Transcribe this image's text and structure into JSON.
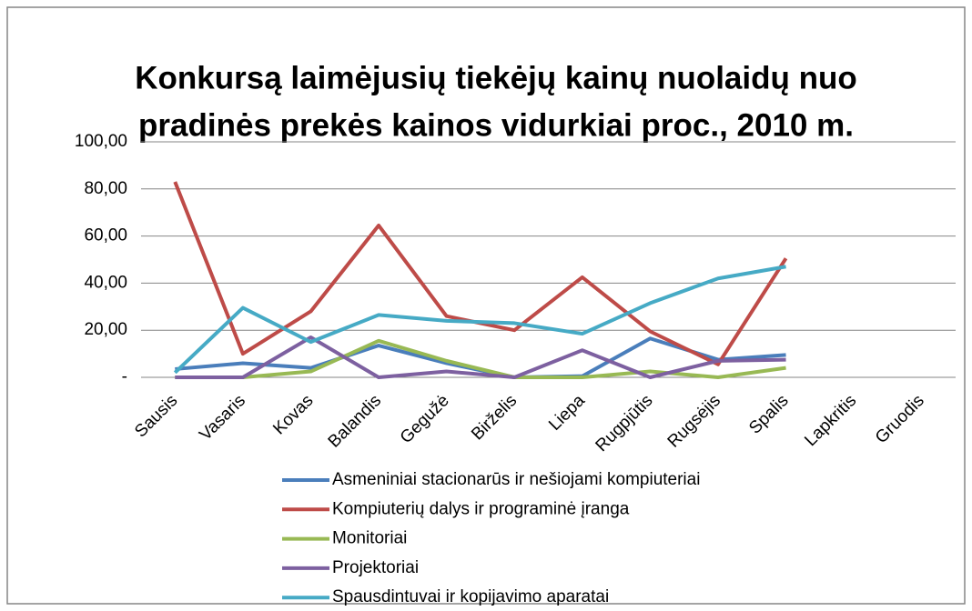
{
  "chart_data": {
    "type": "line",
    "title": [
      "Konkursą laimėjusių tiekėjų kainų nuolaidų nuo",
      "pradinės prekės kainos vidurkiai proc., 2010 m."
    ],
    "categories": [
      "Sausis",
      "Vasaris",
      "Kovas",
      "Balandis",
      "Gegužė",
      "Birželis",
      "Liepa",
      "Rugpjūtis",
      "Rugsėjis",
      "Spalis",
      "Lapkritis",
      "Gruodis"
    ],
    "series": [
      {
        "name": "Asmeniniai stacionarūs ir nešiojami kompiuteriai",
        "color": "#4a7ebb",
        "values": [
          3.5,
          6,
          4,
          13.5,
          6,
          0,
          0.5,
          16.5,
          7.5,
          9.5,
          null,
          null
        ]
      },
      {
        "name": "Kompiuterių dalys ir programinė įranga",
        "color": "#be4b48",
        "values": [
          83,
          10,
          28,
          64.5,
          26,
          20,
          42.5,
          19.5,
          5.5,
          50.5,
          null,
          null
        ]
      },
      {
        "name": "Monitoriai",
        "color": "#98b954",
        "values": [
          0,
          0,
          2.5,
          15.5,
          7,
          0,
          0,
          2.5,
          0,
          4,
          null,
          null
        ]
      },
      {
        "name": "Projektoriai",
        "color": "#7d60a0",
        "values": [
          0,
          0,
          17,
          0,
          2.5,
          0,
          11.5,
          0,
          7,
          7.5,
          null,
          null
        ]
      },
      {
        "name": "Spausdintuvai ir kopijavimo aparatai",
        "color": "#46aac5",
        "values": [
          2,
          29.5,
          15,
          26.5,
          24,
          23,
          18.5,
          31.5,
          42,
          47,
          null,
          null
        ]
      }
    ],
    "ylim": [
      0,
      100
    ],
    "yticks": [
      {
        "value": 0,
        "label": "-"
      },
      {
        "value": 20,
        "label": "20,00"
      },
      {
        "value": 40,
        "label": "40,00"
      },
      {
        "value": 60,
        "label": "60,00"
      },
      {
        "value": 80,
        "label": "80,00"
      },
      {
        "value": 100,
        "label": "100,00"
      }
    ],
    "grid": true,
    "legend": "bottom"
  }
}
